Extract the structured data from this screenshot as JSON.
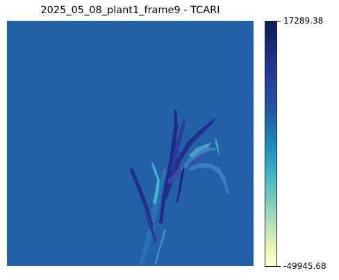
{
  "title": "2025_05_08_plant1_frame9 - TCARI",
  "colorbar": {
    "max_label": "17289.38",
    "min_label": "-49945.68",
    "colormap": [
      "#081d58",
      "#253494",
      "#225ea8",
      "#1d91c0",
      "#41b6c4",
      "#7fcdbb",
      "#c7e9b4",
      "#edf8b1",
      "#ffffd9"
    ]
  },
  "image": {
    "background_color": "#2260a8",
    "subject": "plant",
    "leaf_colors": [
      "#1f2c8a",
      "#2a3b98",
      "#3a7fc0",
      "#46b4c8",
      "#7fcdbb"
    ]
  }
}
